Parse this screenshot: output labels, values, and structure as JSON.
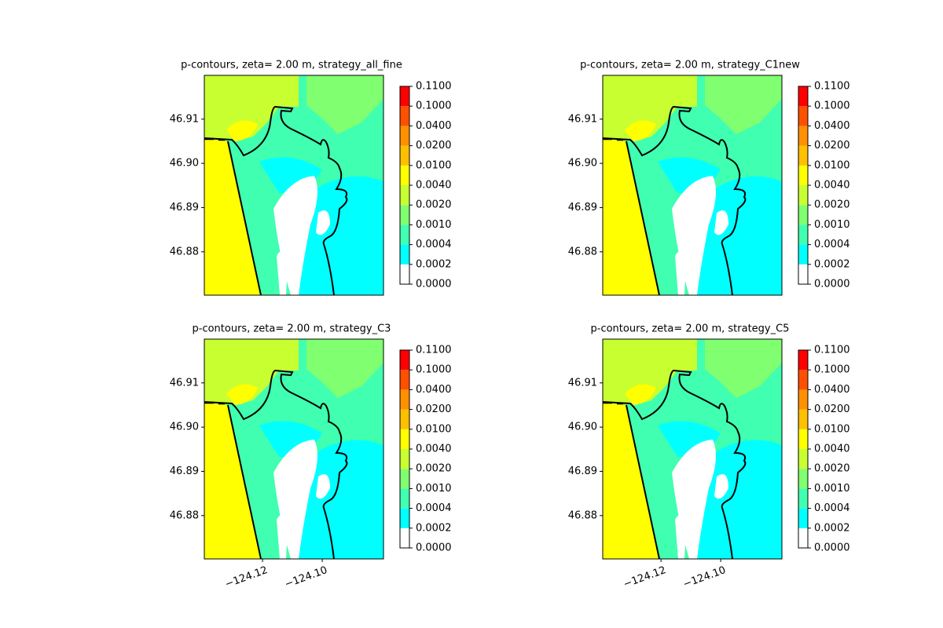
{
  "chart_data": [
    {
      "type": "contour",
      "title": "p-contours, zeta= 2.00 m, strategy_all_fine",
      "xlim": [
        -124.1395,
        -124.0795
      ],
      "ylim": [
        46.8702,
        46.9199
      ],
      "yticks": [
        {
          "value": 46.88,
          "label": "46.88"
        },
        {
          "value": 46.89,
          "label": "46.89"
        },
        {
          "value": 46.9,
          "label": "46.90"
        },
        {
          "value": 46.91,
          "label": "46.91"
        }
      ],
      "levels": [
        {
          "value": 0,
          "label": "0.0000"
        },
        {
          "value": 0.0002,
          "label": "0.0002"
        },
        {
          "value": 0.0004,
          "label": "0.0004"
        },
        {
          "value": 0.001,
          "label": "0.0010"
        },
        {
          "value": 0.002,
          "label": "0.0020"
        },
        {
          "value": 0.004,
          "label": "0.0040"
        },
        {
          "value": 0.01,
          "label": "0.0100"
        },
        {
          "value": 0.02,
          "label": "0.0200"
        },
        {
          "value": 0.04,
          "label": "0.0400"
        },
        {
          "value": 0.1,
          "label": "0.1000"
        },
        {
          "value": 0.11,
          "label": "0.1100"
        }
      ],
      "colors": [
        "#ffffff",
        "#00ffff",
        "#40ffb0",
        "#80ff70",
        "#c8ff30",
        "#ffff00",
        "#ffc000",
        "#ff9000",
        "#ff5000",
        "#ff0000"
      ]
    },
    {
      "type": "contour",
      "title": "p-contours, zeta= 2.00 m, strategy_C1new",
      "xlim": [
        -124.1395,
        -124.0795
      ],
      "ylim": [
        46.8702,
        46.9199
      ],
      "yticks": [
        {
          "value": 46.88,
          "label": "46.88"
        },
        {
          "value": 46.89,
          "label": "46.89"
        },
        {
          "value": 46.9,
          "label": "46.90"
        },
        {
          "value": 46.91,
          "label": "46.91"
        }
      ],
      "levels": [
        {
          "value": 0,
          "label": "0.0000"
        },
        {
          "value": 0.0002,
          "label": "0.0002"
        },
        {
          "value": 0.0004,
          "label": "0.0004"
        },
        {
          "value": 0.001,
          "label": "0.0010"
        },
        {
          "value": 0.002,
          "label": "0.0020"
        },
        {
          "value": 0.004,
          "label": "0.0040"
        },
        {
          "value": 0.01,
          "label": "0.0100"
        },
        {
          "value": 0.02,
          "label": "0.0200"
        },
        {
          "value": 0.04,
          "label": "0.0400"
        },
        {
          "value": 0.1,
          "label": "0.1000"
        },
        {
          "value": 0.11,
          "label": "0.1100"
        }
      ],
      "colors": [
        "#ffffff",
        "#00ffff",
        "#40ffb0",
        "#80ff70",
        "#c8ff30",
        "#ffff00",
        "#ffc000",
        "#ff9000",
        "#ff5000",
        "#ff0000"
      ]
    },
    {
      "type": "contour",
      "title": "p-contours, zeta= 2.00 m, strategy_C3",
      "xlim": [
        -124.1395,
        -124.0795
      ],
      "ylim": [
        46.8702,
        46.9199
      ],
      "xticks": [
        {
          "value": -124.12,
          "label": "−124.12"
        },
        {
          "value": -124.1,
          "label": "−124.10"
        }
      ],
      "yticks": [
        {
          "value": 46.88,
          "label": "46.88"
        },
        {
          "value": 46.89,
          "label": "46.89"
        },
        {
          "value": 46.9,
          "label": "46.90"
        },
        {
          "value": 46.91,
          "label": "46.91"
        }
      ],
      "levels": [
        {
          "value": 0,
          "label": "0.0000"
        },
        {
          "value": 0.0002,
          "label": "0.0002"
        },
        {
          "value": 0.0004,
          "label": "0.0004"
        },
        {
          "value": 0.001,
          "label": "0.0010"
        },
        {
          "value": 0.002,
          "label": "0.0020"
        },
        {
          "value": 0.004,
          "label": "0.0040"
        },
        {
          "value": 0.01,
          "label": "0.0100"
        },
        {
          "value": 0.02,
          "label": "0.0200"
        },
        {
          "value": 0.04,
          "label": "0.0400"
        },
        {
          "value": 0.1,
          "label": "0.1000"
        },
        {
          "value": 0.11,
          "label": "0.1100"
        }
      ],
      "colors": [
        "#ffffff",
        "#00ffff",
        "#40ffb0",
        "#80ff70",
        "#c8ff30",
        "#ffff00",
        "#ffc000",
        "#ff9000",
        "#ff5000",
        "#ff0000"
      ]
    },
    {
      "type": "contour",
      "title": "p-contours, zeta= 2.00 m, strategy_C5",
      "xlim": [
        -124.1395,
        -124.0795
      ],
      "ylim": [
        46.8702,
        46.9199
      ],
      "xticks": [
        {
          "value": -124.12,
          "label": "−124.12"
        },
        {
          "value": -124.1,
          "label": "−124.10"
        }
      ],
      "yticks": [
        {
          "value": 46.88,
          "label": "46.88"
        },
        {
          "value": 46.89,
          "label": "46.89"
        },
        {
          "value": 46.9,
          "label": "46.90"
        },
        {
          "value": 46.91,
          "label": "46.91"
        }
      ],
      "levels": [
        {
          "value": 0,
          "label": "0.0000"
        },
        {
          "value": 0.0002,
          "label": "0.0002"
        },
        {
          "value": 0.0004,
          "label": "0.0004"
        },
        {
          "value": 0.001,
          "label": "0.0010"
        },
        {
          "value": 0.002,
          "label": "0.0020"
        },
        {
          "value": 0.004,
          "label": "0.0040"
        },
        {
          "value": 0.01,
          "label": "0.0100"
        },
        {
          "value": 0.02,
          "label": "0.0200"
        },
        {
          "value": 0.04,
          "label": "0.0400"
        },
        {
          "value": 0.1,
          "label": "0.1000"
        },
        {
          "value": 0.11,
          "label": "0.1100"
        }
      ],
      "colors": [
        "#ffffff",
        "#00ffff",
        "#40ffb0",
        "#80ff70",
        "#c8ff30",
        "#ffff00",
        "#ffc000",
        "#ff9000",
        "#ff5000",
        "#ff0000"
      ]
    }
  ]
}
